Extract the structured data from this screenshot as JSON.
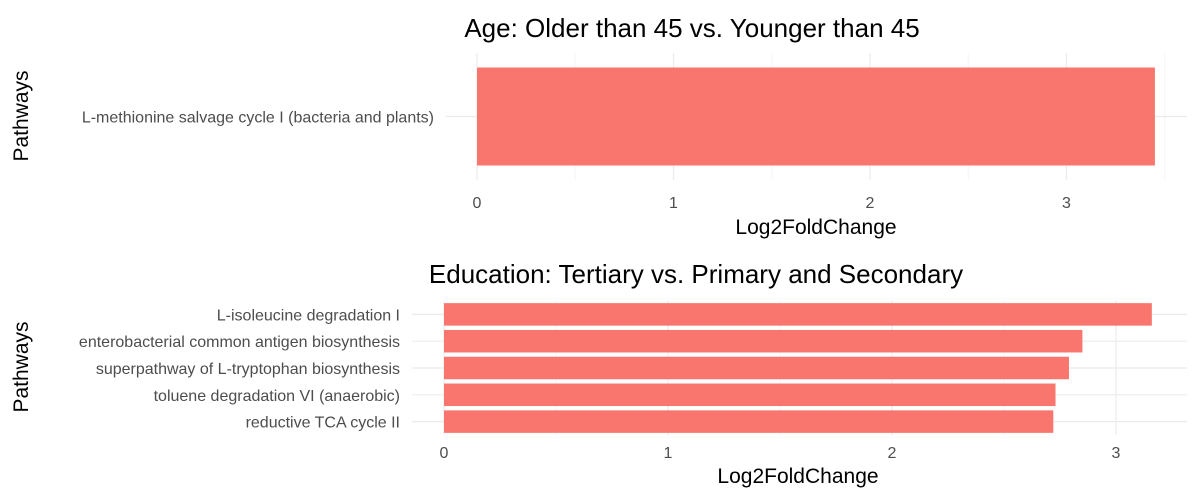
{
  "colors": {
    "bar": "#F8766D",
    "grid_major": "#EBEBEB",
    "grid_minor": "#F5F5F5",
    "text": "#000000",
    "tick_text": "#4D4D4D"
  },
  "chart_data": [
    {
      "type": "bar",
      "orientation": "horizontal",
      "title": "Age: Older than 45 vs. Younger than 45",
      "xlabel": "Log2FoldChange",
      "ylabel": "Pathways",
      "categories": [
        "L-methionine salvage cycle I (bacteria and plants)"
      ],
      "values": [
        3.45
      ],
      "xlim": [
        0,
        3.45
      ],
      "xticks": [
        "0",
        "1",
        "2",
        "3"
      ],
      "grid": true,
      "legend": "none"
    },
    {
      "type": "bar",
      "orientation": "horizontal",
      "title": "Education: Tertiary vs. Primary and Secondary",
      "xlabel": "Log2FoldChange",
      "ylabel": "Pathways",
      "categories": [
        "L-isoleucine degradation I",
        "enterobacterial common antigen biosynthesis",
        "superpathway of L-tryptophan biosynthesis",
        "toluene degradation VI (anaerobic)",
        "reductive TCA cycle II"
      ],
      "values": [
        3.16,
        2.85,
        2.79,
        2.73,
        2.72
      ],
      "xlim": [
        0,
        3.16
      ],
      "xticks": [
        "0",
        "1",
        "2",
        "3"
      ],
      "grid": true,
      "legend": "none"
    }
  ]
}
